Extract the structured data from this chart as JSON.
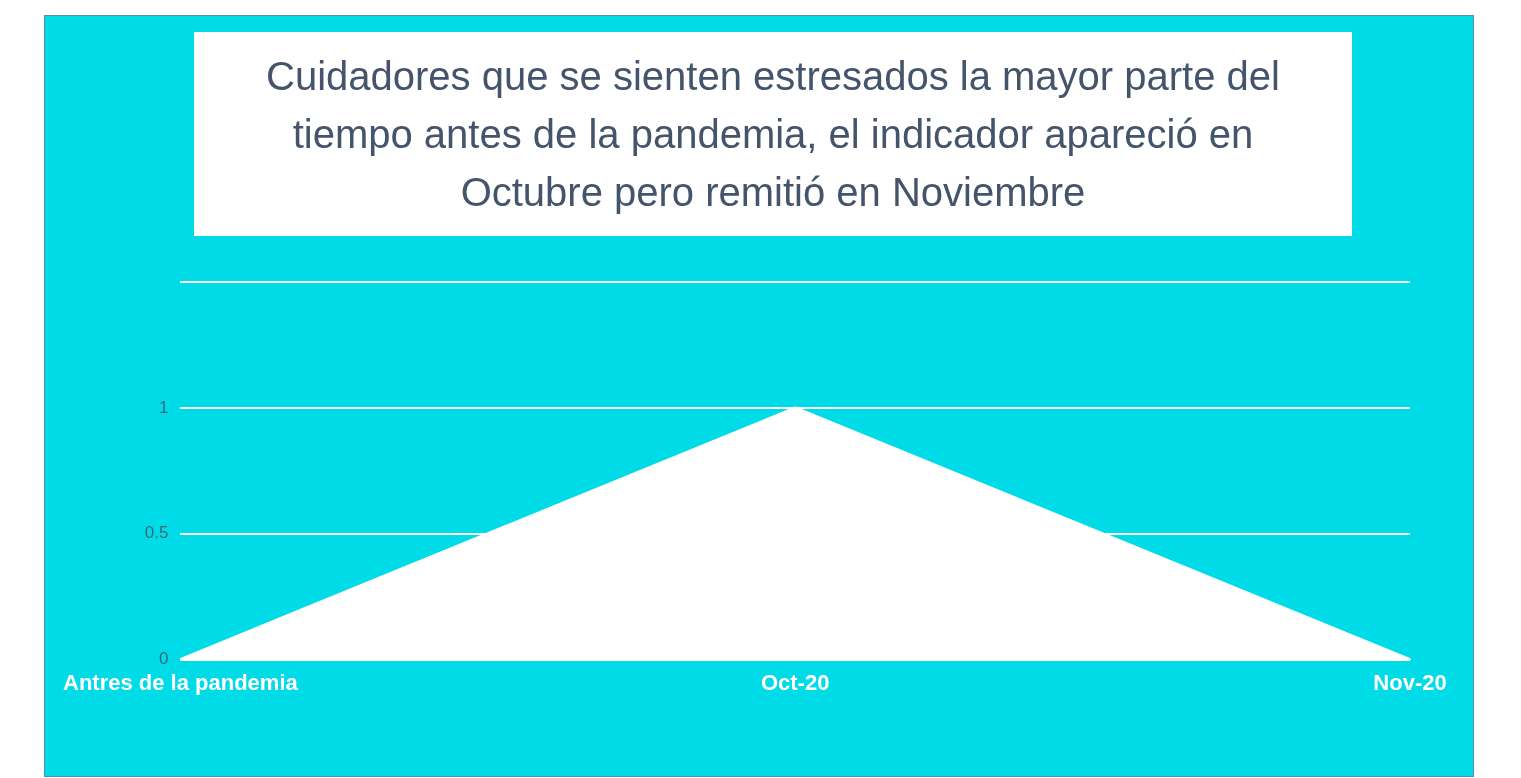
{
  "chart_data": {
    "type": "area",
    "title": "Cuidadores que se sienten estresados la mayor parte del tiempo antes de la pandemia, el indicador apareció en Octubre pero remitió en Noviembre",
    "categories": [
      "Antres de la pandemia",
      "Oct-20",
      "Nov-20"
    ],
    "series": [
      {
        "color": "#ffffff",
        "values": [
          0,
          1,
          0
        ]
      }
    ],
    "ylim": [
      0,
      1.5
    ],
    "yticks": [
      0,
      0.5,
      1,
      {
        "value": 1.5,
        "label": null
      }
    ],
    "grid": "y",
    "legend": false
  }
}
